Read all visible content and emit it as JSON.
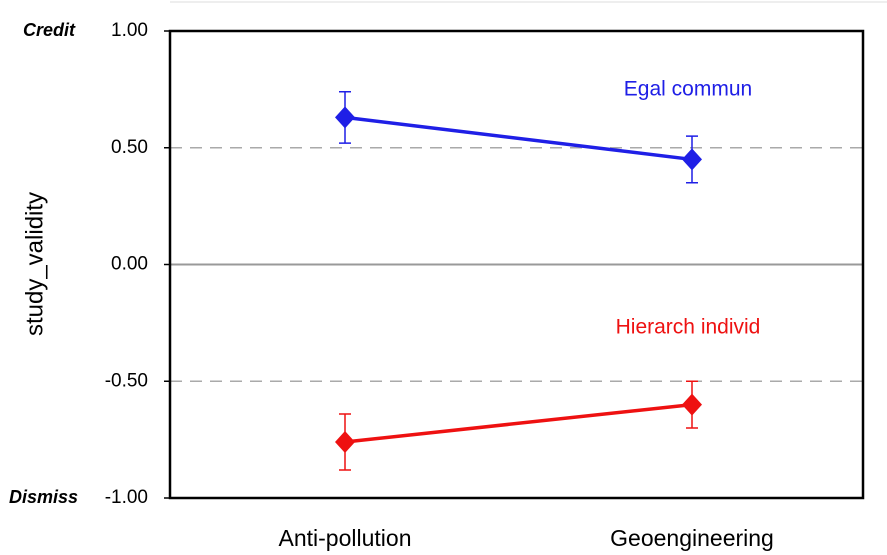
{
  "chart_data": {
    "type": "line",
    "y_label": "study_validity",
    "annotations": [
      "Credit",
      "Dismiss"
    ],
    "categories": [
      "Anti-pollution",
      "Geoengineering"
    ],
    "series": [
      {
        "name": "Egal commun",
        "color": "#1f1fe6",
        "values": [
          0.63,
          0.45
        ],
        "errors": [
          0.11,
          0.1
        ]
      },
      {
        "name": "Hierarch individ",
        "color": "#ee1111",
        "values": [
          -0.76,
          -0.6
        ],
        "errors": [
          0.12,
          0.1
        ]
      }
    ],
    "ylim": [
      -1,
      1
    ],
    "yticks": [
      {
        "value": 1,
        "label": "1.00"
      },
      {
        "value": 0.5,
        "label": "0.50"
      },
      {
        "value": 0,
        "label": "0.00"
      },
      {
        "value": -0.5,
        "label": "-0.50"
      },
      {
        "value": -1,
        "label": "-1.00"
      }
    ],
    "grid": true
  }
}
